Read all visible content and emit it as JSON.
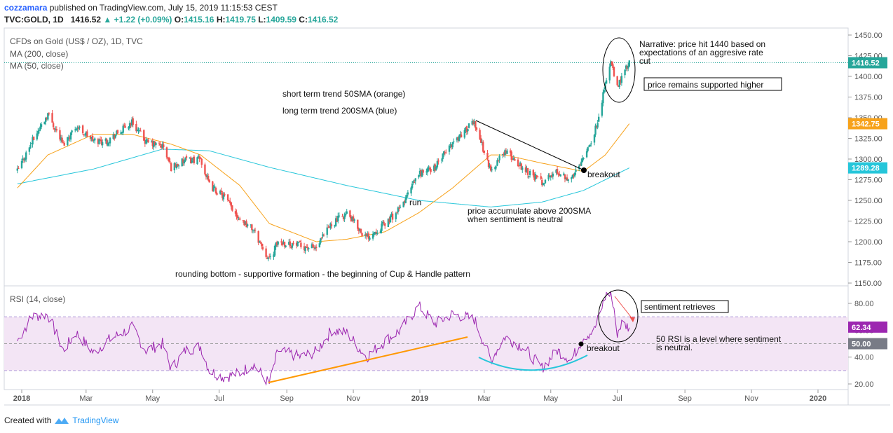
{
  "header": {
    "author": "cozzamara",
    "published": "published on TradingView.com, July 15, 2019 11:15:53 CEST",
    "symbol": "TVC:GOLD, 1D",
    "last": "1416.52",
    "change": "+1.22 (+0.09%)",
    "open_label": "O:",
    "open": "1415.16",
    "high_label": "H:",
    "high": "1419.75",
    "low_label": "L:",
    "low": "1409.59",
    "close_label": "C:",
    "close": "1416.52"
  },
  "legend": {
    "title": "CFDs on Gold (US$ / OZ), 1D, TVC",
    "ma200": "MA (200, close)",
    "ma50": "MA (50, close)",
    "rsi": "RSI (14, close)"
  },
  "footer": {
    "created_with": "Created with",
    "brand": "TradingView"
  },
  "colors": {
    "up": "#26a69a",
    "down": "#ef5350",
    "ma50": "#f7a21b",
    "ma200": "#26c6da",
    "rsi": "#9c27b0",
    "rsi_band": "#f3e5f5",
    "trend_orange": "#ff9800",
    "cup_cyan": "#26c6da"
  },
  "chart_data": [
    {
      "type": "candlestick",
      "title": "CFDs on Gold (US$ / OZ), 1D, TVC",
      "x_ticks": [
        "2018",
        "Mar",
        "May",
        "Jul",
        "Sep",
        "Nov",
        "2019",
        "Mar",
        "May",
        "Jul",
        "Sep",
        "Nov",
        "2020"
      ],
      "y_ticks": [
        "1450.00",
        "1425.00",
        "1400.00",
        "1375.00",
        "1350.00",
        "1325.00",
        "1300.00",
        "1275.00",
        "1250.00",
        "1225.00",
        "1200.00",
        "1175.00",
        "1150.00"
      ],
      "ylim": [
        1140,
        1465
      ],
      "badges": {
        "last": "1416.52",
        "ma50": "1342.75",
        "ma200": "1289.28"
      },
      "close_anchors": [
        [
          "2017-12-28",
          1285
        ],
        [
          "2018-01-10",
          1320
        ],
        [
          "2018-01-25",
          1355
        ],
        [
          "2018-02-08",
          1318
        ],
        [
          "2018-02-20",
          1340
        ],
        [
          "2018-03-08",
          1322
        ],
        [
          "2018-03-20",
          1322
        ],
        [
          "2018-04-03",
          1335
        ],
        [
          "2018-04-12",
          1345
        ],
        [
          "2018-04-25",
          1320
        ],
        [
          "2018-05-10",
          1316
        ],
        [
          "2018-05-18",
          1290
        ],
        [
          "2018-05-31",
          1298
        ],
        [
          "2018-06-14",
          1300
        ],
        [
          "2018-06-22",
          1268
        ],
        [
          "2018-07-05",
          1255
        ],
        [
          "2018-07-20",
          1228
        ],
        [
          "2018-08-01",
          1215
        ],
        [
          "2018-08-16",
          1178
        ],
        [
          "2018-08-24",
          1200
        ],
        [
          "2018-09-14",
          1195
        ],
        [
          "2018-09-28",
          1192
        ],
        [
          "2018-10-12",
          1222
        ],
        [
          "2018-10-26",
          1234
        ],
        [
          "2018-11-13",
          1205
        ],
        [
          "2018-11-30",
          1222
        ],
        [
          "2018-12-14",
          1240
        ],
        [
          "2018-12-31",
          1282
        ],
        [
          "2019-01-15",
          1290
        ],
        [
          "2019-01-31",
          1320
        ],
        [
          "2019-02-20",
          1345
        ],
        [
          "2019-03-07",
          1285
        ],
        [
          "2019-03-20",
          1310
        ],
        [
          "2019-04-05",
          1290
        ],
        [
          "2019-04-23",
          1272
        ],
        [
          "2019-05-07",
          1285
        ],
        [
          "2019-05-20",
          1275
        ],
        [
          "2019-05-31",
          1305
        ],
        [
          "2019-06-10",
          1330
        ],
        [
          "2019-06-20",
          1390
        ],
        [
          "2019-06-25",
          1418
        ],
        [
          "2019-07-01",
          1385
        ],
        [
          "2019-07-05",
          1400
        ],
        [
          "2019-07-12",
          1416.52
        ]
      ],
      "ma50_anchors": [
        [
          "2017-12-28",
          1265
        ],
        [
          "2018-01-25",
          1305
        ],
        [
          "2018-03-08",
          1330
        ],
        [
          "2018-04-12",
          1330
        ],
        [
          "2018-05-18",
          1318
        ],
        [
          "2018-06-14",
          1305
        ],
        [
          "2018-07-20",
          1268
        ],
        [
          "2018-08-16",
          1222
        ],
        [
          "2018-09-28",
          1200
        ],
        [
          "2018-10-26",
          1203
        ],
        [
          "2018-11-30",
          1212
        ],
        [
          "2018-12-31",
          1235
        ],
        [
          "2019-01-31",
          1265
        ],
        [
          "2019-03-07",
          1305
        ],
        [
          "2019-03-20",
          1305
        ],
        [
          "2019-04-23",
          1295
        ],
        [
          "2019-05-31",
          1285
        ],
        [
          "2019-06-20",
          1305
        ],
        [
          "2019-07-12",
          1342.75
        ]
      ],
      "ma200_anchors": [
        [
          "2017-12-28",
          1270
        ],
        [
          "2018-03-08",
          1288
        ],
        [
          "2018-05-10",
          1312
        ],
        [
          "2018-06-22",
          1310
        ],
        [
          "2018-08-16",
          1290
        ],
        [
          "2018-10-26",
          1268
        ],
        [
          "2018-12-31",
          1250
        ],
        [
          "2019-03-07",
          1242
        ],
        [
          "2019-04-23",
          1248
        ],
        [
          "2019-05-31",
          1262
        ],
        [
          "2019-07-12",
          1289.28
        ]
      ]
    },
    {
      "type": "line",
      "title": "RSI (14, close)",
      "y_ticks": [
        "80.00",
        "60.00",
        "40.00",
        "20.00"
      ],
      "ylim": [
        15,
        90
      ],
      "band": [
        30,
        70
      ],
      "midline": 50,
      "badges": {
        "last": "62.34",
        "mid": "50.00"
      },
      "rsi_anchors": [
        [
          "2017-12-28",
          52
        ],
        [
          "2018-01-10",
          70
        ],
        [
          "2018-01-25",
          72
        ],
        [
          "2018-02-08",
          45
        ],
        [
          "2018-02-20",
          58
        ],
        [
          "2018-03-08",
          43
        ],
        [
          "2018-03-20",
          52
        ],
        [
          "2018-04-03",
          58
        ],
        [
          "2018-04-12",
          62
        ],
        [
          "2018-04-25",
          45
        ],
        [
          "2018-05-10",
          50
        ],
        [
          "2018-05-18",
          31
        ],
        [
          "2018-05-31",
          45
        ],
        [
          "2018-06-14",
          48
        ],
        [
          "2018-06-22",
          30
        ],
        [
          "2018-07-05",
          25
        ],
        [
          "2018-07-20",
          28
        ],
        [
          "2018-08-01",
          35
        ],
        [
          "2018-08-16",
          20
        ],
        [
          "2018-08-24",
          45
        ],
        [
          "2018-09-14",
          40
        ],
        [
          "2018-09-28",
          44
        ],
        [
          "2018-10-12",
          60
        ],
        [
          "2018-10-26",
          58
        ],
        [
          "2018-11-13",
          40
        ],
        [
          "2018-11-30",
          52
        ],
        [
          "2018-12-14",
          60
        ],
        [
          "2018-12-31",
          78
        ],
        [
          "2019-01-15",
          65
        ],
        [
          "2019-01-31",
          72
        ],
        [
          "2019-02-20",
          68
        ],
        [
          "2019-03-07",
          38
        ],
        [
          "2019-03-20",
          55
        ],
        [
          "2019-04-05",
          48
        ],
        [
          "2019-04-23",
          32
        ],
        [
          "2019-05-07",
          45
        ],
        [
          "2019-05-20",
          38
        ],
        [
          "2019-05-31",
          55
        ],
        [
          "2019-06-10",
          60
        ],
        [
          "2019-06-20",
          85
        ],
        [
          "2019-06-25",
          88
        ],
        [
          "2019-07-01",
          58
        ],
        [
          "2019-07-05",
          65
        ],
        [
          "2019-07-12",
          62.34
        ]
      ]
    }
  ],
  "annotations": {
    "narrative": "Narrative: price hit 1440 based on expectations of an aggresive rate cut",
    "price_supported": "price remains supported higher",
    "short_term": "short term trend 50SMA (orange)",
    "long_term": "long term trend 200SMA (blue)",
    "breakout": "breakout",
    "run": "run",
    "accumulate": "price accumulate above 200SMA when sentiment is neutral",
    "rounding": "rounding bottom - supportive formation - the beginning of Cup & Handle pattern",
    "sentiment_retrieves": "sentiment retrieves",
    "rsi_level": "50 RSI is a level where sentiment is neutral.",
    "rsi_breakout": "breakout"
  }
}
